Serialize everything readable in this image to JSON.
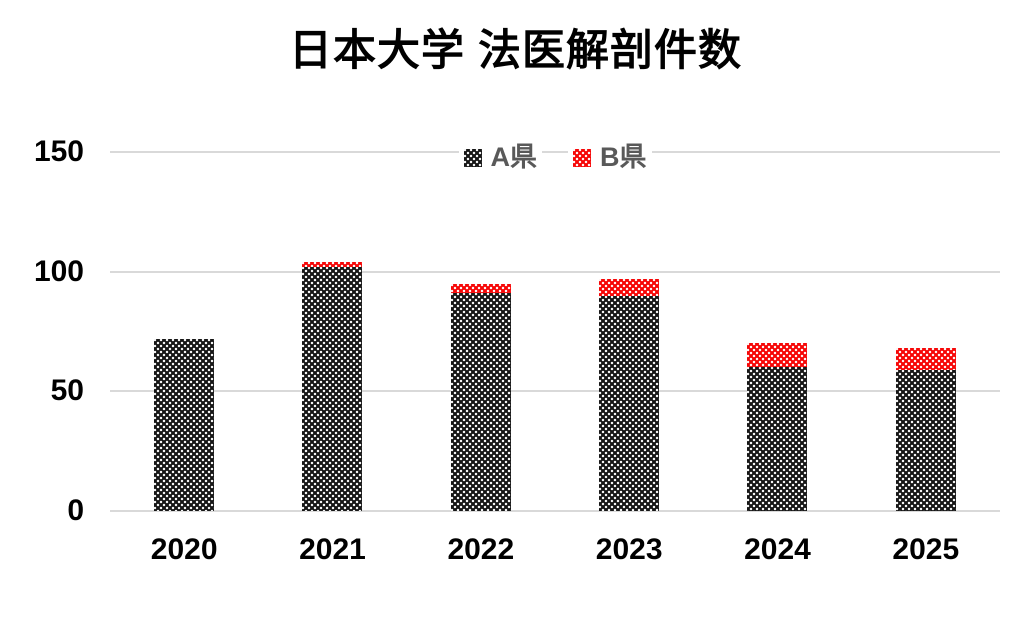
{
  "title": "日本大学 法医解剖件数",
  "legend": {
    "items": [
      {
        "label": "A県",
        "color": "#161616"
      },
      {
        "label": "B県",
        "color": "#f60606"
      }
    ]
  },
  "colors": {
    "series_a": "#161616",
    "series_b": "#f60606",
    "gridline": "#d9d9d9",
    "axis_text": "#000000",
    "legend_text": "#595959",
    "background": "#ffffff"
  },
  "chart_data": {
    "type": "bar",
    "stacked": true,
    "title": "日本大学 法医解剖件数",
    "categories": [
      "2020",
      "2021",
      "2022",
      "2023",
      "2024",
      "2025"
    ],
    "series": [
      {
        "name": "A県",
        "color": "#161616",
        "values": [
          72,
          102,
          91,
          90,
          60,
          59
        ]
      },
      {
        "name": "B県",
        "color": "#f60606",
        "values": [
          0,
          2,
          4,
          7,
          10,
          9
        ]
      }
    ],
    "totals": [
      72,
      104,
      95,
      97,
      70,
      68
    ],
    "xlabel": "",
    "ylabel": "",
    "ylim": [
      0,
      150
    ],
    "yticks": [
      0,
      50,
      100,
      150
    ],
    "grid": true,
    "legend_position": "top-center",
    "fill_pattern": "white-dots"
  }
}
